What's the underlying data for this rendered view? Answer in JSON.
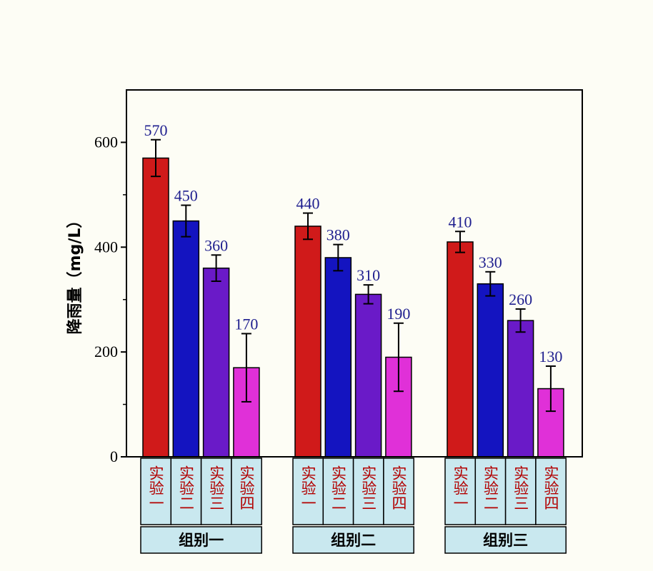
{
  "chart_data": {
    "type": "bar",
    "ylabel": "降雨量（mg/L）",
    "ylim": [
      0,
      700
    ],
    "yticks": [
      0,
      200,
      400,
      600
    ],
    "grid": false,
    "groups": [
      {
        "name": "组别一",
        "bars": [
          {
            "label": "实验一",
            "value": 570,
            "error": 35
          },
          {
            "label": "实验二",
            "value": 450,
            "error": 30
          },
          {
            "label": "实验三",
            "value": 360,
            "error": 25
          },
          {
            "label": "实验四",
            "value": 170,
            "error": 65
          }
        ]
      },
      {
        "name": "组别二",
        "bars": [
          {
            "label": "实验一",
            "value": 440,
            "error": 25
          },
          {
            "label": "实验二",
            "value": 380,
            "error": 25
          },
          {
            "label": "实验三",
            "value": 310,
            "error": 18
          },
          {
            "label": "实验四",
            "value": 190,
            "error": 65
          }
        ]
      },
      {
        "name": "组别三",
        "bars": [
          {
            "label": "实验一",
            "value": 410,
            "error": 20
          },
          {
            "label": "实验二",
            "value": 330,
            "error": 23
          },
          {
            "label": "实验三",
            "value": 260,
            "error": 22
          },
          {
            "label": "实验四",
            "value": 130,
            "error": 43
          }
        ]
      }
    ],
    "colors": [
      "#d01a1a",
      "#1414c0",
      "#6a1ac8",
      "#e030d8"
    ],
    "label_box_color": "#c9e8ef",
    "value_label_color": "#1f1f8f",
    "category_label_color": "#b30000"
  }
}
